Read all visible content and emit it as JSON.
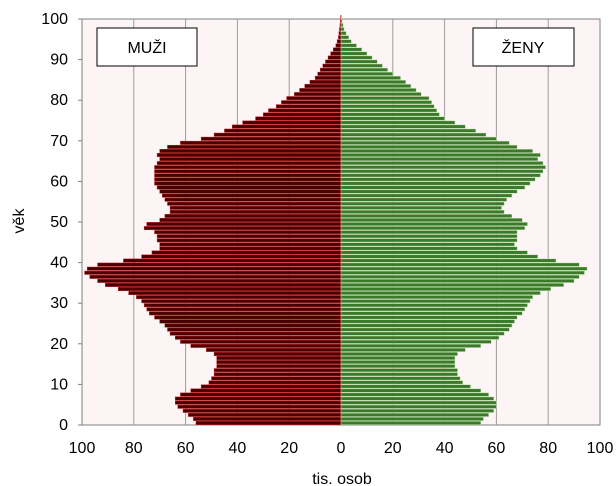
{
  "chart_data": {
    "type": "bar",
    "subtype": "population-pyramid",
    "xlabel": "tis. osob",
    "ylabel": "věk",
    "x_ticks": [
      "100",
      "80",
      "60",
      "40",
      "20",
      "0",
      "20",
      "40",
      "60",
      "80",
      "100"
    ],
    "y_ticks": [
      "0",
      "10",
      "20",
      "30",
      "40",
      "50",
      "60",
      "70",
      "80",
      "90",
      "100"
    ],
    "xlim": [
      0,
      100
    ],
    "ylim": [
      0,
      100
    ],
    "grid": "vertical",
    "colors": {
      "male_fill": "#4a0000",
      "male_stroke": "#d21f1f",
      "female_fill": "#3a7a2a",
      "female_stroke": "#c9e3b5",
      "plot_bg": "#fdf5f5",
      "grid": "#9c9c9c"
    },
    "categories": [
      0,
      1,
      2,
      3,
      4,
      5,
      6,
      7,
      8,
      9,
      10,
      11,
      12,
      13,
      14,
      15,
      16,
      17,
      18,
      19,
      20,
      21,
      22,
      23,
      24,
      25,
      26,
      27,
      28,
      29,
      30,
      31,
      32,
      33,
      34,
      35,
      36,
      37,
      38,
      39,
      40,
      41,
      42,
      43,
      44,
      45,
      46,
      47,
      48,
      49,
      50,
      51,
      52,
      53,
      54,
      55,
      56,
      57,
      58,
      59,
      60,
      61,
      62,
      63,
      64,
      65,
      66,
      67,
      68,
      69,
      70,
      71,
      72,
      73,
      74,
      75,
      76,
      77,
      78,
      79,
      80,
      81,
      82,
      83,
      84,
      85,
      86,
      87,
      88,
      89,
      90,
      91,
      92,
      93,
      94,
      95,
      96,
      97,
      98,
      99,
      100
    ],
    "series": [
      {
        "name": "MUŽI",
        "side": "left",
        "values": [
          56,
          57,
          59,
          61,
          63,
          64,
          64,
          62,
          58,
          54,
          51,
          50,
          49,
          49,
          48,
          48,
          48,
          49,
          52,
          58,
          62,
          64,
          66,
          67,
          68,
          70,
          72,
          74,
          75,
          76,
          77,
          79,
          82,
          86,
          91,
          94,
          97,
          99,
          98,
          94,
          84,
          77,
          73,
          70,
          70,
          71,
          71,
          72,
          76,
          75,
          70,
          68,
          66,
          66,
          67,
          68,
          69,
          70,
          71,
          72,
          72,
          72,
          72,
          72,
          71,
          70,
          71,
          70,
          67,
          62,
          54,
          49,
          45,
          42,
          38,
          33,
          30,
          28,
          25,
          23,
          21,
          18,
          16,
          14,
          12,
          10,
          9,
          8,
          7,
          6,
          5,
          4,
          3,
          2,
          1.5,
          1,
          0.8,
          0.6,
          0.4,
          0.3,
          0.2
        ]
      },
      {
        "name": "ŽENY",
        "side": "right",
        "values": [
          54,
          55,
          57,
          59,
          60,
          60,
          59,
          57,
          54,
          50,
          47,
          46,
          45,
          45,
          44,
          44,
          44,
          45,
          48,
          54,
          58,
          61,
          63,
          65,
          66,
          67,
          68,
          70,
          71,
          72,
          73,
          74,
          77,
          81,
          86,
          90,
          92,
          94,
          95,
          92,
          83,
          76,
          72,
          68,
          67,
          68,
          68,
          68,
          71,
          72,
          70,
          66,
          63,
          62,
          63,
          64,
          66,
          68,
          71,
          73,
          75,
          77,
          78,
          79,
          78,
          76,
          77,
          74,
          68,
          65,
          60,
          56,
          52,
          48,
          44,
          40,
          38,
          37,
          36,
          35,
          34,
          31,
          29,
          27,
          25,
          23,
          20,
          18,
          16,
          14,
          12,
          10,
          8,
          6,
          4,
          3,
          2,
          1.2,
          0.8,
          0.5,
          0.3
        ]
      }
    ],
    "legend": {
      "male": "MUŽI",
      "female": "ŽENY",
      "placement": "top-left and top-right inside plot"
    }
  }
}
